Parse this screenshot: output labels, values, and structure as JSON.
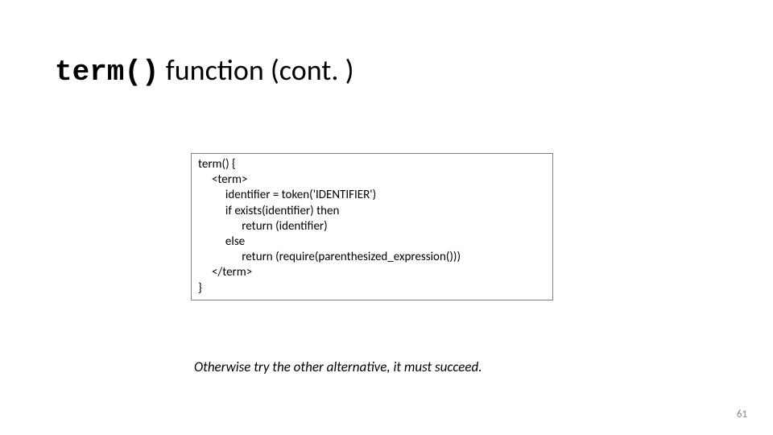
{
  "title": {
    "mono": "term()",
    "rest": " function (cont. )"
  },
  "code": {
    "l0": "term() {",
    "l1": "     <term>",
    "l2": "          identifier = token('IDENTIFIER')",
    "l3": "          if exists(identifier) then",
    "l4": "                return (identifier)",
    "l5": "          else",
    "l6": "                return (require(parenthesized_expression()))",
    "l7": "     </term>",
    "l8": "}"
  },
  "caption": "Otherwise try the other alternative, it must succeed.",
  "page_number": "61",
  "colors": {
    "background": "#ffffff",
    "text": "#000000",
    "border": "#7f7f7f",
    "pagenum": "#8a8a8a"
  }
}
